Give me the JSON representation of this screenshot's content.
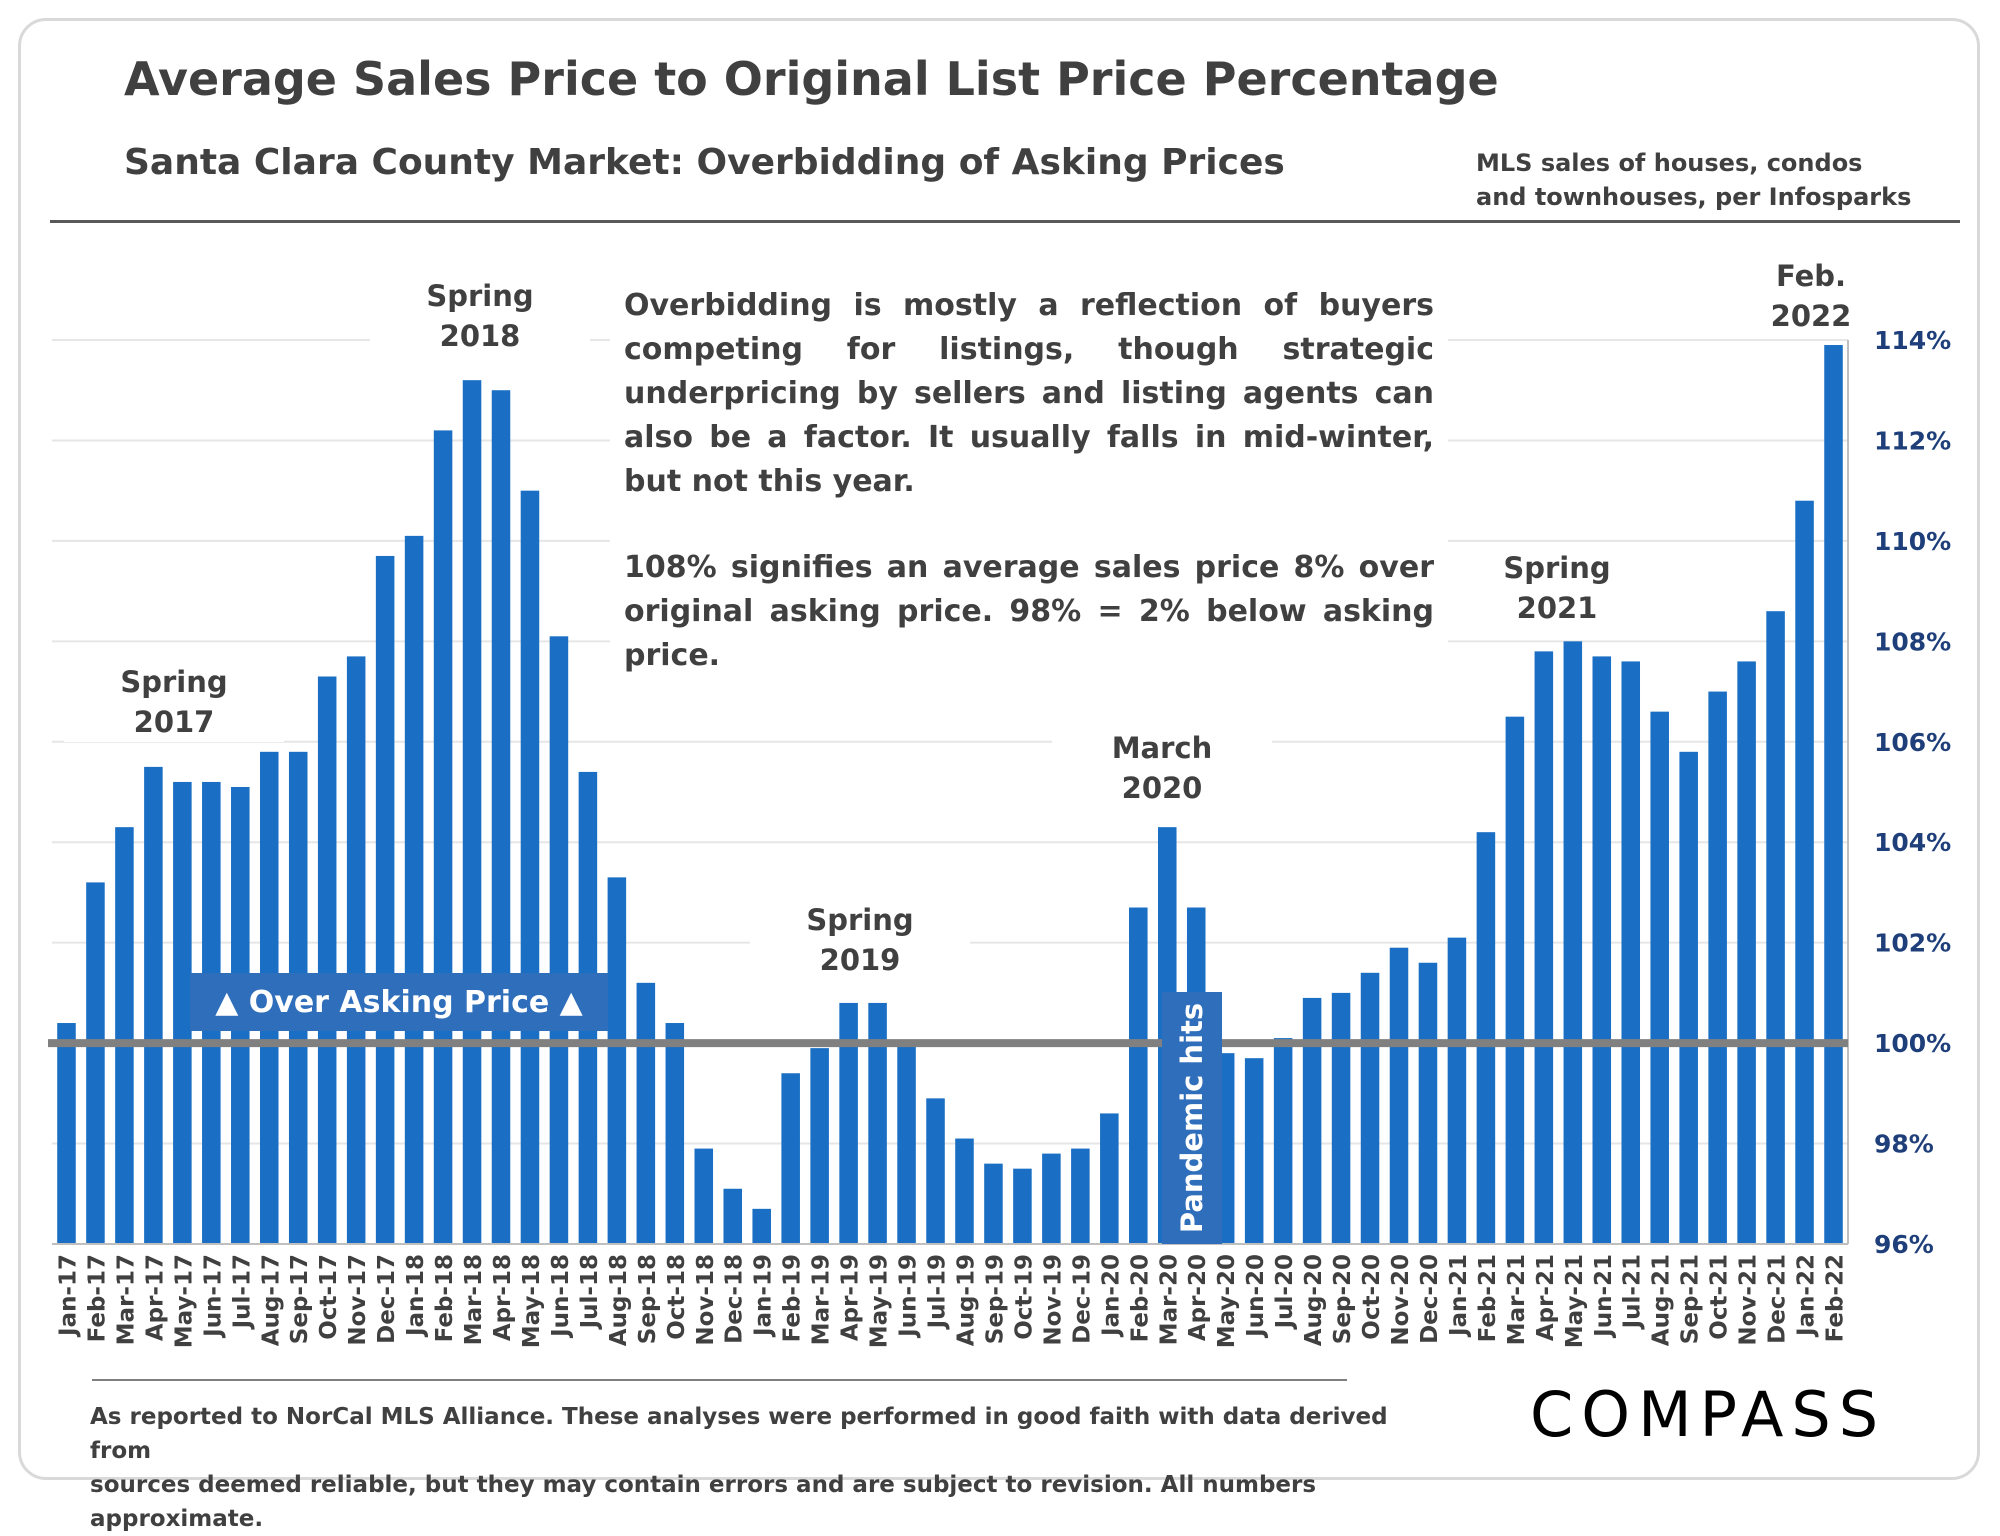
{
  "header": {
    "title": "Average Sales Price to Original List Price Percentage",
    "subtitle": "Santa Clara County Market: Overbidding of Asking Prices",
    "source": "MLS sales of houses, condos and townhouses, per Infosparks"
  },
  "note": {
    "para1": "Overbidding is mostly a reflection of buyers competing for listings, though strategic underpricing by sellers and listing agents can also be a factor. It usually falls in mid-winter, but not this year.",
    "para2": "108% signifies an average sales price 8% over original asking price. 98% = 2% below asking price."
  },
  "annotations": {
    "spring2017": [
      "Spring",
      "2017"
    ],
    "spring2018": [
      "Spring",
      "2018"
    ],
    "spring2019": [
      "Spring",
      "2019"
    ],
    "march2020": [
      "March",
      "2020"
    ],
    "spring2021": [
      "Spring",
      "2021"
    ],
    "feb2022": [
      "Feb.",
      "2022"
    ]
  },
  "labels": {
    "over_asking": "▲ Over Asking Price ▲",
    "pandemic": "Pandemic hits"
  },
  "footer": {
    "line1": "As reported to NorCal MLS Alliance. These analyses were performed in good faith with data derived from",
    "line2": "sources deemed reliable, but they may contain errors and are subject to revision. All numbers approximate."
  },
  "logo": "COMPASS",
  "colors": {
    "bar": "#1a6fc4",
    "baseline": "#808080",
    "axis_text": "#1f3f7a",
    "box": "#2f6eba"
  },
  "chart_data": {
    "type": "bar",
    "title": "Average Sales Price to Original List Price Percentage",
    "subtitle": "Santa Clara County Market: Overbidding of Asking Prices",
    "xlabel": "",
    "ylabel": "",
    "ylim": [
      96,
      114
    ],
    "yticks": [
      "96%",
      "98%",
      "100%",
      "102%",
      "104%",
      "106%",
      "108%",
      "110%",
      "112%",
      "114%"
    ],
    "y_axis_position": "right",
    "reference_line": 100,
    "grid": true,
    "categories": [
      "Jan-17",
      "Feb-17",
      "Mar-17",
      "Apr-17",
      "May-17",
      "Jun-17",
      "Jul-17",
      "Aug-17",
      "Sep-17",
      "Oct-17",
      "Nov-17",
      "Dec-17",
      "Jan-18",
      "Feb-18",
      "Mar-18",
      "Apr-18",
      "May-18",
      "Jun-18",
      "Jul-18",
      "Aug-18",
      "Sep-18",
      "Oct-18",
      "Nov-18",
      "Dec-18",
      "Jan-19",
      "Feb-19",
      "Mar-19",
      "Apr-19",
      "May-19",
      "Jun-19",
      "Jul-19",
      "Aug-19",
      "Sep-19",
      "Oct-19",
      "Nov-19",
      "Dec-19",
      "Jan-20",
      "Feb-20",
      "Mar-20",
      "Apr-20",
      "May-20",
      "Jun-20",
      "Jul-20",
      "Aug-20",
      "Sep-20",
      "Oct-20",
      "Nov-20",
      "Dec-20",
      "Jan-21",
      "Feb-21",
      "Mar-21",
      "Apr-21",
      "May-21",
      "Jun-21",
      "Jul-21",
      "Aug-21",
      "Sep-21",
      "Oct-21",
      "Nov-21",
      "Dec-21",
      "Jan-22",
      "Feb-22"
    ],
    "values": [
      100.4,
      103.2,
      104.3,
      105.5,
      105.2,
      105.2,
      105.1,
      105.8,
      105.8,
      107.3,
      107.7,
      109.7,
      110.1,
      112.2,
      113.2,
      113.0,
      111.0,
      108.1,
      105.4,
      103.3,
      101.2,
      100.4,
      97.9,
      97.1,
      96.7,
      99.4,
      99.9,
      100.8,
      100.8,
      100.0,
      98.9,
      98.1,
      97.6,
      97.5,
      97.8,
      97.9,
      98.6,
      102.7,
      104.3,
      102.7,
      99.8,
      99.7,
      100.1,
      100.9,
      101.0,
      101.4,
      101.9,
      101.6,
      102.1,
      104.2,
      106.5,
      107.8,
      108.0,
      107.7,
      107.6,
      106.6,
      105.8,
      107.0,
      107.6,
      108.6,
      110.8,
      113.9
    ]
  }
}
